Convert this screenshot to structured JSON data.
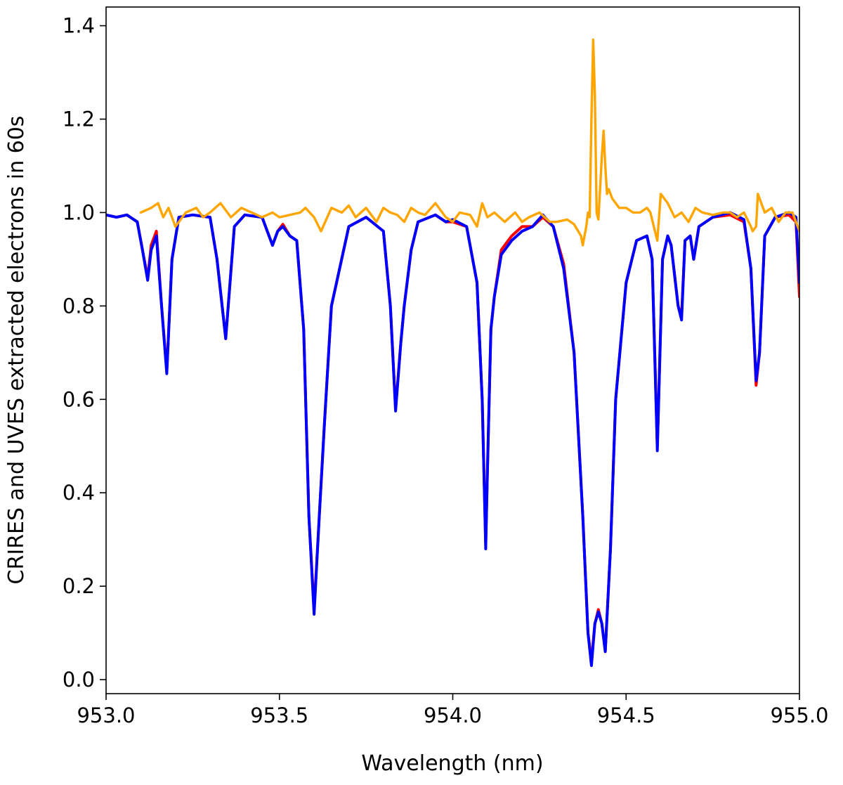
{
  "chart_data": {
    "type": "line",
    "title": "",
    "xlabel": "Wavelength (nm)",
    "ylabel": "CRIRES and UVES extracted electrons in 60s",
    "xlim": [
      953.0,
      955.0
    ],
    "ylim": [
      -0.03,
      1.44
    ],
    "xticks": [
      953.0,
      953.5,
      954.0,
      954.5,
      955.0
    ],
    "xtick_labels": [
      "953.0",
      "953.5",
      "954.0",
      "954.5",
      "955.0"
    ],
    "yticks": [
      0.0,
      0.2,
      0.4,
      0.6,
      0.8,
      1.0,
      1.2,
      1.4
    ],
    "ytick_labels": [
      "0.0",
      "0.2",
      "0.4",
      "0.6",
      "0.8",
      "1.0",
      "1.2",
      "1.4"
    ],
    "grid": false,
    "legend": "none",
    "series": [
      {
        "color": "#ff0000",
        "x": [
          953.0,
          953.03,
          953.06,
          953.09,
          953.105,
          953.12,
          953.13,
          953.145,
          953.16,
          953.175,
          953.19,
          953.21,
          953.25,
          953.3,
          953.32,
          953.345,
          953.37,
          953.4,
          953.45,
          953.48,
          953.495,
          953.51,
          953.53,
          953.55,
          953.57,
          953.585,
          953.6,
          953.615,
          953.63,
          953.65,
          953.7,
          953.75,
          953.8,
          953.82,
          953.835,
          953.85,
          953.86,
          953.88,
          953.9,
          953.95,
          953.98,
          954.0,
          954.04,
          954.07,
          954.085,
          954.095,
          954.1,
          954.11,
          954.12,
          954.14,
          954.17,
          954.2,
          954.23,
          954.26,
          954.29,
          954.32,
          954.35,
          954.375,
          954.39,
          954.4,
          954.41,
          954.42,
          954.43,
          954.44,
          954.455,
          954.47,
          954.5,
          954.53,
          954.56,
          954.575,
          954.59,
          954.605,
          954.62,
          954.63,
          954.65,
          954.66,
          954.67,
          954.685,
          954.695,
          954.71,
          954.75,
          954.8,
          954.84,
          954.86,
          954.875,
          954.885,
          954.9,
          954.93,
          954.97,
          954.99,
          955.0
        ],
        "y": [
          0.995,
          0.99,
          0.995,
          0.98,
          0.92,
          0.86,
          0.93,
          0.96,
          0.8,
          0.66,
          0.9,
          0.99,
          0.995,
          0.99,
          0.9,
          0.73,
          0.97,
          0.995,
          0.99,
          0.93,
          0.96,
          0.975,
          0.95,
          0.94,
          0.75,
          0.35,
          0.15,
          0.35,
          0.55,
          0.8,
          0.97,
          0.99,
          0.96,
          0.8,
          0.58,
          0.72,
          0.8,
          0.92,
          0.98,
          0.995,
          0.98,
          0.98,
          0.97,
          0.85,
          0.6,
          0.29,
          0.45,
          0.75,
          0.82,
          0.92,
          0.95,
          0.97,
          0.97,
          0.99,
          0.97,
          0.89,
          0.7,
          0.35,
          0.1,
          0.04,
          0.12,
          0.15,
          0.12,
          0.06,
          0.28,
          0.6,
          0.85,
          0.94,
          0.95,
          0.9,
          0.5,
          0.9,
          0.95,
          0.93,
          0.8,
          0.78,
          0.94,
          0.95,
          0.9,
          0.97,
          0.99,
          0.995,
          0.98,
          0.88,
          0.63,
          0.7,
          0.95,
          0.99,
          0.995,
          0.98,
          0.82
        ]
      },
      {
        "color": "#0000ff",
        "x": [
          953.0,
          953.03,
          953.06,
          953.09,
          953.105,
          953.12,
          953.13,
          953.145,
          953.16,
          953.175,
          953.19,
          953.21,
          953.25,
          953.3,
          953.32,
          953.345,
          953.37,
          953.4,
          953.45,
          953.48,
          953.495,
          953.51,
          953.53,
          953.55,
          953.57,
          953.585,
          953.6,
          953.615,
          953.63,
          953.65,
          953.7,
          953.75,
          953.8,
          953.82,
          953.835,
          953.85,
          953.86,
          953.88,
          953.9,
          953.95,
          953.98,
          954.0,
          954.04,
          954.07,
          954.085,
          954.095,
          954.1,
          954.11,
          954.12,
          954.14,
          954.17,
          954.2,
          954.23,
          954.26,
          954.29,
          954.32,
          954.35,
          954.375,
          954.39,
          954.4,
          954.41,
          954.42,
          954.43,
          954.44,
          954.455,
          954.47,
          954.5,
          954.53,
          954.56,
          954.575,
          954.59,
          954.605,
          954.62,
          954.63,
          954.65,
          954.66,
          954.67,
          954.685,
          954.695,
          954.71,
          954.75,
          954.8,
          954.84,
          954.86,
          954.875,
          954.885,
          954.9,
          954.93,
          954.97,
          954.99,
          955.0
        ],
        "y": [
          0.995,
          0.99,
          0.995,
          0.98,
          0.92,
          0.855,
          0.92,
          0.95,
          0.8,
          0.655,
          0.9,
          0.99,
          0.995,
          0.99,
          0.9,
          0.73,
          0.97,
          0.995,
          0.99,
          0.93,
          0.96,
          0.97,
          0.95,
          0.94,
          0.75,
          0.35,
          0.14,
          0.35,
          0.55,
          0.8,
          0.97,
          0.99,
          0.96,
          0.8,
          0.575,
          0.72,
          0.8,
          0.92,
          0.98,
          0.995,
          0.98,
          0.985,
          0.97,
          0.85,
          0.6,
          0.28,
          0.45,
          0.75,
          0.82,
          0.91,
          0.94,
          0.96,
          0.97,
          0.995,
          0.97,
          0.88,
          0.7,
          0.35,
          0.1,
          0.03,
          0.12,
          0.145,
          0.12,
          0.06,
          0.28,
          0.6,
          0.85,
          0.94,
          0.95,
          0.9,
          0.49,
          0.9,
          0.95,
          0.93,
          0.8,
          0.77,
          0.94,
          0.95,
          0.9,
          0.97,
          0.99,
          1.0,
          0.985,
          0.88,
          0.64,
          0.7,
          0.95,
          0.99,
          1.0,
          0.99,
          0.85
        ]
      },
      {
        "color": "#ffa500",
        "x": [
          953.1,
          953.13,
          953.15,
          953.165,
          953.18,
          953.2,
          953.23,
          953.26,
          953.28,
          953.3,
          953.33,
          953.36,
          953.39,
          953.42,
          953.45,
          953.48,
          953.5,
          953.53,
          953.56,
          953.575,
          953.6,
          953.62,
          953.65,
          953.68,
          953.7,
          953.72,
          953.75,
          953.78,
          953.8,
          953.82,
          953.84,
          953.86,
          953.88,
          953.9,
          953.92,
          953.95,
          953.98,
          954.0,
          954.02,
          954.05,
          954.07,
          954.085,
          954.1,
          954.12,
          954.15,
          954.18,
          954.2,
          954.22,
          954.25,
          954.28,
          954.3,
          954.33,
          954.35,
          954.37,
          954.375,
          954.385,
          954.39,
          954.395,
          954.4,
          954.405,
          954.41,
          954.415,
          954.42,
          954.425,
          954.43,
          954.435,
          954.44,
          954.445,
          954.45,
          954.46,
          954.47,
          954.48,
          954.5,
          954.52,
          954.54,
          954.56,
          954.57,
          954.58,
          954.59,
          954.6,
          954.62,
          954.64,
          954.66,
          954.68,
          954.7,
          954.72,
          954.75,
          954.78,
          954.8,
          954.82,
          954.84,
          954.86,
          954.865,
          954.875,
          954.88,
          954.89,
          954.9,
          954.92,
          954.94,
          954.96,
          954.98,
          955.0
        ],
        "y": [
          1.0,
          1.01,
          1.02,
          0.99,
          1.01,
          0.97,
          1.0,
          1.01,
          0.99,
          1.0,
          1.02,
          0.99,
          1.01,
          1.0,
          0.99,
          1.0,
          0.99,
          0.995,
          1.0,
          1.01,
          0.99,
          0.96,
          1.01,
          1.0,
          1.015,
          0.99,
          1.01,
          0.98,
          1.01,
          1.0,
          0.995,
          0.98,
          1.01,
          1.0,
          0.995,
          1.02,
          0.99,
          0.98,
          1.0,
          0.995,
          0.97,
          1.02,
          0.99,
          1.0,
          0.98,
          1.0,
          0.98,
          0.99,
          1.0,
          0.98,
          0.98,
          0.985,
          0.975,
          0.95,
          0.93,
          0.97,
          1.0,
          0.99,
          1.2,
          1.37,
          1.25,
          1.0,
          0.985,
          1.05,
          1.12,
          1.175,
          1.1,
          1.04,
          1.05,
          1.03,
          1.02,
          1.01,
          1.01,
          1.0,
          1.0,
          1.01,
          1.0,
          0.97,
          0.94,
          1.04,
          1.02,
          0.99,
          1.0,
          0.98,
          1.01,
          1.0,
          0.995,
          1.0,
          1.0,
          0.99,
          1.0,
          0.97,
          0.96,
          0.97,
          1.04,
          1.02,
          1.0,
          1.01,
          0.98,
          1.0,
          1.0,
          0.96
        ]
      }
    ]
  }
}
